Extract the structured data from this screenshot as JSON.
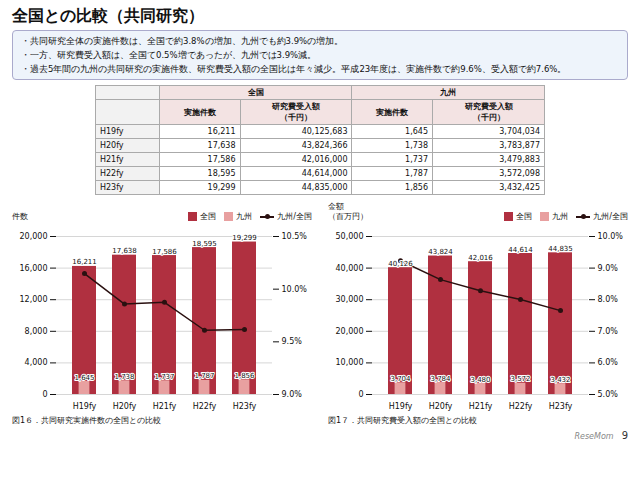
{
  "title": "全国との比較（共同研究）",
  "annotations": [
    "・共同研究全体の実施件数は、全国で約3.8%の増加、九州でも約3.9%の増加。",
    "・一方、研究費受入額は、全国て0.5%増であったが、九州では3.9%減。",
    "・過去5年間の九州の共同研究の実施件数、研究費受入額の全国比は年々減少。平成23年度は、実施件数で約9.6%、受入額で約7.6%。"
  ],
  "table": {
    "header_groups": [
      "全国",
      "九州"
    ],
    "columns": [
      "実施件数",
      "研究費受入額\n（千円）",
      "実施件数",
      "研究費受入額\n（千円）"
    ],
    "rows": [
      [
        "H19fy",
        "16,211",
        "40,125,683",
        "1,645",
        "3,704,034"
      ],
      [
        "H20fy",
        "17,638",
        "43,824,366",
        "1,738",
        "3,783,877"
      ],
      [
        "H21fy",
        "17,586",
        "42,016,000",
        "1,737",
        "3,479,883"
      ],
      [
        "H22fy",
        "18,595",
        "44,614,000",
        "1,787",
        "3,572,098"
      ],
      [
        "H23fy",
        "19,299",
        "44,835,000",
        "1,856",
        "3,432,425"
      ]
    ]
  },
  "source": "ReseMom",
  "page": "9",
  "chart_data": [
    {
      "type": "bar",
      "title": "図1６．共同研究実施件数の全国との比較",
      "categories": [
        "H19fy",
        "H20fy",
        "H21fy",
        "H22fy",
        "H23fy"
      ],
      "ylabel": "件数",
      "ylim": [
        0,
        20000
      ],
      "yticks": [
        0,
        {
          "value": 4000,
          "label": "4,000"
        },
        {
          "value": 8000,
          "label": "8,000"
        },
        {
          "value": 12000,
          "label": "12,000"
        },
        {
          "value": 16000,
          "label": "16,000"
        },
        {
          "value": 20000,
          "label": "20,000"
        }
      ],
      "y2lim": [
        0.09,
        0.105
      ],
      "y2ticks": [
        {
          "value": 0.09,
          "label": "9.0%"
        },
        {
          "value": 0.095,
          "label": "9.5%"
        },
        {
          "value": 0.1,
          "label": "10.0%"
        },
        {
          "value": 0.105,
          "label": "10.5%"
        }
      ],
      "grid": true,
      "legend": "upper right",
      "data_labels": true,
      "series": [
        {
          "name": "全国",
          "type": "bar",
          "color": "#b03040",
          "values": [
            16211,
            17638,
            17586,
            18595,
            19299
          ],
          "value_labels": [
            "16,211",
            "17,638",
            "17,586",
            "18,595",
            "19,299"
          ]
        },
        {
          "name": "九州",
          "type": "bar",
          "color": "#e8a0a0",
          "values": [
            1645,
            1738,
            1737,
            1787,
            1856
          ],
          "value_labels": [
            "1,645",
            "1,738",
            "1,737",
            "1,787",
            "1,856"
          ]
        },
        {
          "name": "九州/全国",
          "type": "line",
          "axis": "y2",
          "color": "#2a1010",
          "marker": "circle",
          "values": [
            0.10148,
            0.09858,
            0.09875,
            0.0961,
            0.09617
          ]
        }
      ]
    },
    {
      "type": "bar",
      "title": "図1７．共同研究費受入額の全国との比較",
      "categories": [
        "H19fy",
        "H20fy",
        "H21fy",
        "H22fy",
        "H23fy"
      ],
      "ylabel": "金額\n（百万円）",
      "ylim": [
        0,
        50000
      ],
      "yticks": [
        0,
        {
          "value": 10000,
          "label": "10,000"
        },
        {
          "value": 20000,
          "label": "20,000"
        },
        {
          "value": 30000,
          "label": "30,000"
        },
        {
          "value": 40000,
          "label": "40,000"
        },
        {
          "value": 50000,
          "label": "50,000"
        }
      ],
      "y2lim": [
        0.05,
        0.1
      ],
      "y2ticks": [
        {
          "value": 0.05,
          "label": "5.0%"
        },
        {
          "value": 0.06,
          "label": "6.0%"
        },
        {
          "value": 0.07,
          "label": "7.0%"
        },
        {
          "value": 0.08,
          "label": "8.0%"
        },
        {
          "value": 0.09,
          "label": "9.0%"
        },
        {
          "value": 0.1,
          "label": "10.0%"
        }
      ],
      "grid": true,
      "legend": "upper right",
      "data_labels": true,
      "series": [
        {
          "name": "全国",
          "type": "bar",
          "color": "#b03040",
          "values": [
            40126,
            43824,
            42016,
            44614,
            44835
          ],
          "value_labels": [
            "40,126",
            "43,824",
            "42,016",
            "44,614",
            "44,835"
          ]
        },
        {
          "name": "九州",
          "type": "bar",
          "color": "#e8a0a0",
          "values": [
            3704,
            3784,
            3480,
            3572,
            3432
          ],
          "value_labels": [
            "3,704",
            "3,784",
            "3,480",
            "3,572",
            "3,432"
          ]
        },
        {
          "name": "九州/全国",
          "type": "line",
          "axis": "y2",
          "color": "#2a1010",
          "marker": "circle",
          "values": [
            0.09232,
            0.08636,
            0.08283,
            0.08007,
            0.07655
          ]
        }
      ]
    }
  ]
}
